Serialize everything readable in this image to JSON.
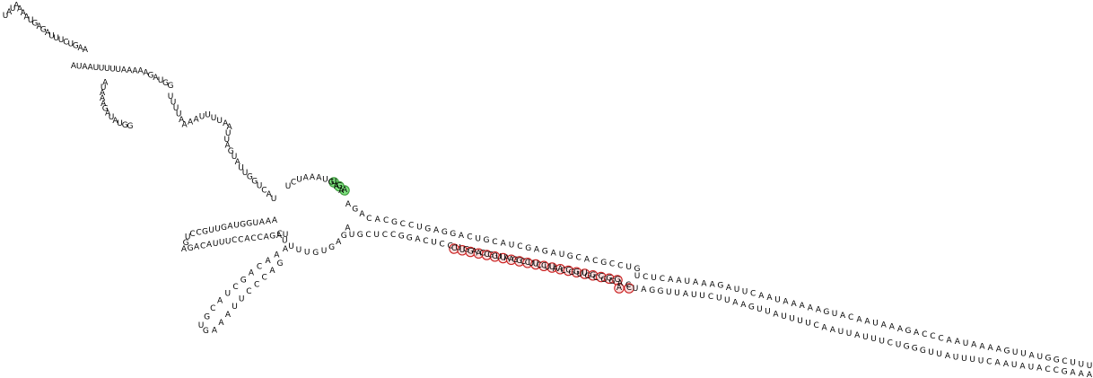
{
  "diagram": {
    "colors": {
      "background": "#ffffff",
      "text": "#000000",
      "start_marker_fill": "#7ee07e",
      "start_marker_stroke": "#3c9a3c",
      "region_marker_fill": "#fde0e0",
      "region_marker_stroke": "#c81e1e"
    },
    "strands": [
      {
        "id": "tail-top-left",
        "sequence": "UAUAAAAUGAGAUUUCUGAA"
      },
      {
        "id": "arm-upper-5p",
        "sequence": "AUAAUUUUUAAAAAGAUGG"
      },
      {
        "id": "loop-left",
        "sequence": "AUAAAGAUAUGG"
      },
      {
        "id": "arm-upper-3p",
        "sequence": "UUUUAAAAUUUUAAUUAGUAUUGGUCAU"
      },
      {
        "id": "central-loop-top",
        "sequence": "UCUAAAUGAA"
      },
      {
        "id": "hairpin-left",
        "sequence": "AAAUGGUAGUUGCCUGAGACAUUUCCACCAGAU"
      },
      {
        "id": "hairpin-lower",
        "sequence": "AAACAGCUACGUGAAAUUCCCAG"
      },
      {
        "id": "central-loop-bottom",
        "sequence": "AGAGUGUUUUC"
      },
      {
        "id": "stem-right-top",
        "sequence": "AGACACGCCUGAGGACUGCAUCGAGAUGCACGCCUG"
      },
      {
        "id": "stem-right-bottom",
        "sequence": "UGCUCCGGACUCCUGACGUAGCUCUACGUGCGGAC"
      },
      {
        "id": "tail-right-top",
        "sequence": "UCUCAAUAAAGAUUCAAUAAAAAGUACAAUAAAGACCCAAUAAAAGUUAUGGCUUU"
      },
      {
        "id": "tail-right-bottom",
        "sequence": "UAGGUUAUUCUUAAGUUAUUUUCAAUUAUUUCUGGGUUAUUUUCAAUAUACCGAAA"
      }
    ],
    "marked_start": [
      "U",
      "G",
      "A"
    ],
    "marked_region": [
      "C",
      "U",
      "G",
      "A",
      "C",
      "G",
      "U",
      "A",
      "G",
      "C",
      "U",
      "C",
      "U",
      "A",
      "C",
      "G",
      "U",
      "G",
      "C",
      "G",
      "G",
      "A",
      "C"
    ]
  }
}
